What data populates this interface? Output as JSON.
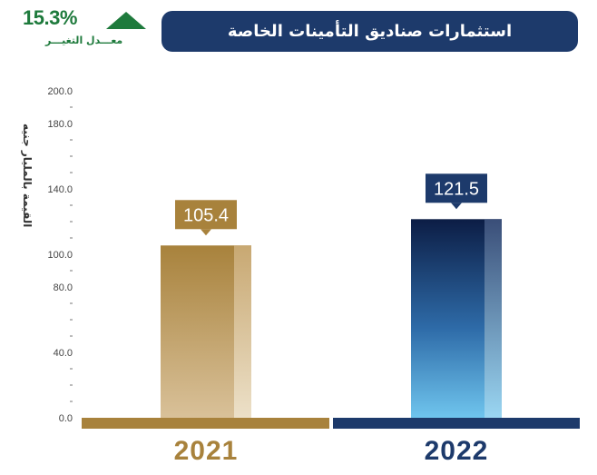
{
  "title": "استثمارات صناديق التأمينات الخاصة",
  "change": {
    "value": "15.3%",
    "label": "معـــدل التغيـــر",
    "direction": "up",
    "color": "#1e7a3c"
  },
  "chart_data": {
    "type": "bar",
    "title": "استثمارات صناديق التأمينات الخاصة",
    "ylabel": "القيمة بالمليار جنيه",
    "xlabel": "",
    "ylim": [
      0,
      200
    ],
    "yticks": [
      "0.0",
      "40.0",
      "80.0",
      "100.0",
      "140.0",
      "180.0",
      "200.0"
    ],
    "categories": [
      "2021",
      "2022"
    ],
    "values": [
      105.4,
      121.5
    ],
    "value_labels": [
      "105.4",
      "121.5"
    ],
    "category_colors": [
      "#a8823c",
      "#1d3a6b"
    ],
    "grid": false,
    "legend": "none"
  }
}
